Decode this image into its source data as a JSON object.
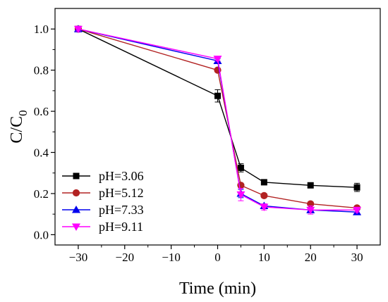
{
  "chart_data": {
    "type": "line",
    "xlabel": "Time (min)",
    "ylabel": {
      "main": "C/C",
      "sub": "0"
    },
    "xlim": [
      -35,
      35
    ],
    "ylim": [
      -0.05,
      1.1
    ],
    "xticks": [
      -30,
      -20,
      -10,
      0,
      10,
      20,
      30
    ],
    "xtick_labels": [
      "−30",
      "−20",
      "−10",
      "0",
      "10",
      "20",
      "30"
    ],
    "yticks": [
      0.0,
      0.2,
      0.4,
      0.6,
      0.8,
      1.0
    ],
    "ytick_labels": [
      "0.0",
      "0.2",
      "0.4",
      "0.6",
      "0.8",
      "1.0"
    ],
    "x": [
      -30,
      0,
      5,
      10,
      20,
      30
    ],
    "grid": false,
    "legend_position": "bottom-left",
    "series": [
      {
        "name": "pH=3.06",
        "color": "#000000",
        "marker": "square",
        "values": [
          1.0,
          0.675,
          0.325,
          0.255,
          0.24,
          0.23
        ],
        "errors": [
          0.01,
          0.03,
          0.02,
          0.01,
          0.01,
          0.02
        ]
      },
      {
        "name": "pH=5.12",
        "color": "#b22222",
        "marker": "circle",
        "values": [
          1.0,
          0.8,
          0.24,
          0.19,
          0.15,
          0.13
        ],
        "errors": [
          0.01,
          0.01,
          0.01,
          0.01,
          0.01,
          0.01
        ]
      },
      {
        "name": "pH=7.33",
        "color": "#0000ee",
        "marker": "triangle-up",
        "values": [
          1.0,
          0.845,
          0.2,
          0.14,
          0.12,
          0.11
        ],
        "errors": [
          0.01,
          0.01,
          0.02,
          0.01,
          0.01,
          0.01
        ]
      },
      {
        "name": "pH=9.11",
        "color": "#ff00ff",
        "marker": "triangle-down",
        "values": [
          1.0,
          0.855,
          0.195,
          0.135,
          0.12,
          0.12
        ],
        "errors": [
          0.01,
          0.01,
          0.03,
          0.015,
          0.02,
          0.01
        ]
      }
    ]
  }
}
